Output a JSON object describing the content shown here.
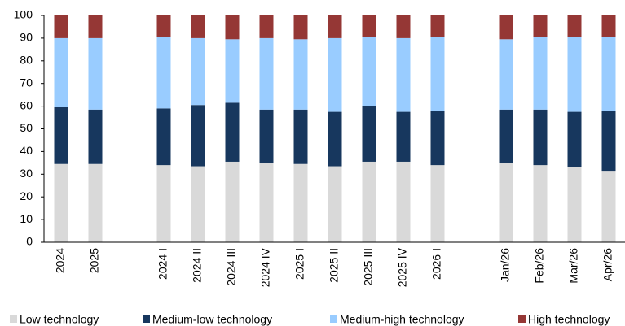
{
  "chart_data": {
    "type": "stacked_bar",
    "categories": [
      "2024",
      "2025",
      null,
      "2024 I",
      "2024 II",
      "2024 III",
      "2024 IV",
      "2025 I",
      "2025 II",
      "2025 III",
      "2025 IV",
      "2026 I",
      null,
      "Jan/26",
      "Feb/26",
      "Mar/26",
      "Apr/26"
    ],
    "series": [
      {
        "name": "Low technology",
        "color": "#d9d9d9",
        "values": [
          34.5,
          34.5,
          null,
          34,
          33.5,
          35.5,
          35,
          34.5,
          33.5,
          35.5,
          35.5,
          34,
          null,
          35,
          34,
          33,
          31.5
        ]
      },
      {
        "name": "Medium-low technology",
        "color": "#17375e",
        "values": [
          25,
          24,
          null,
          25,
          27,
          26,
          23.5,
          24,
          24,
          24.5,
          22,
          24,
          null,
          23.5,
          24.5,
          24.5,
          26.5
        ]
      },
      {
        "name": "Medium-high technology",
        "color": "#99ccff",
        "values": [
          30.5,
          31.5,
          null,
          31.5,
          29.5,
          28,
          31.5,
          31,
          32.5,
          30.5,
          32.5,
          32.5,
          null,
          31,
          32,
          33,
          32.5
        ]
      },
      {
        "name": "High technology",
        "color": "#953735",
        "values": [
          10,
          10,
          null,
          9.5,
          10,
          10.5,
          10,
          10.5,
          10,
          9.5,
          10,
          9.5,
          null,
          10.5,
          9.5,
          9.5,
          9.5
        ]
      }
    ],
    "ylim": [
      0,
      100
    ],
    "yticks": [
      0,
      10,
      20,
      30,
      40,
      50,
      60,
      70,
      80,
      90,
      100
    ],
    "legend": "bottom"
  }
}
